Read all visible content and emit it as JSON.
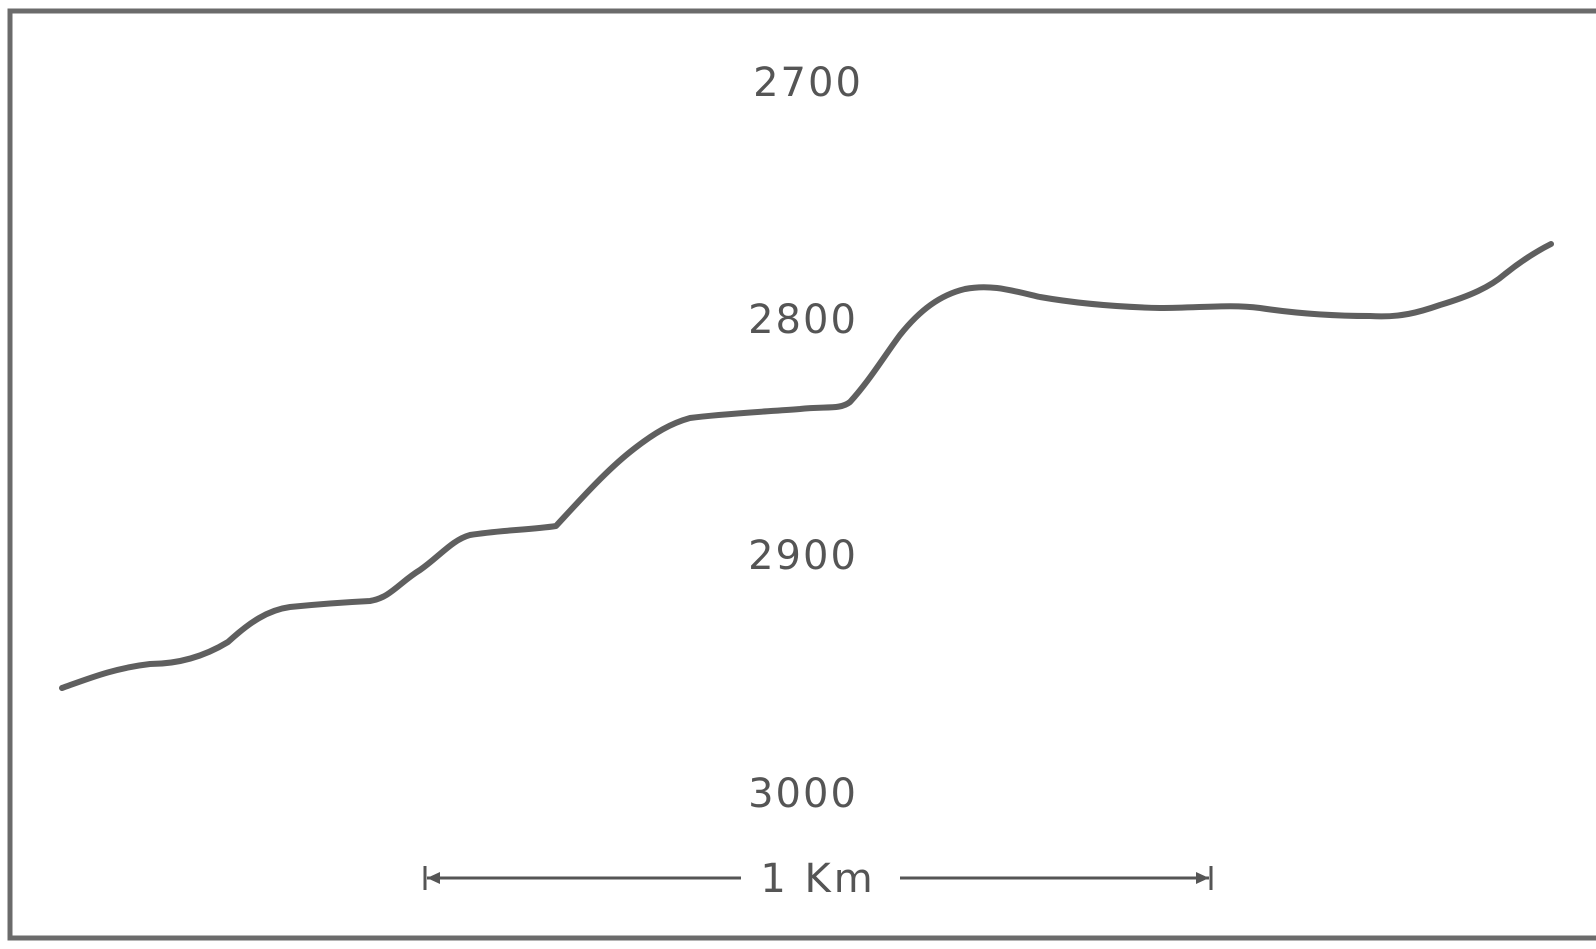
{
  "figure": {
    "depth_labels": [
      "2700",
      "2800",
      "2900",
      "3000"
    ],
    "scale_bar": {
      "label": "1 Km"
    },
    "colors": {
      "frame": "#6b6b6b",
      "profile": "#5f5f5f",
      "text": "#555555",
      "background": "#ffffff"
    }
  }
}
